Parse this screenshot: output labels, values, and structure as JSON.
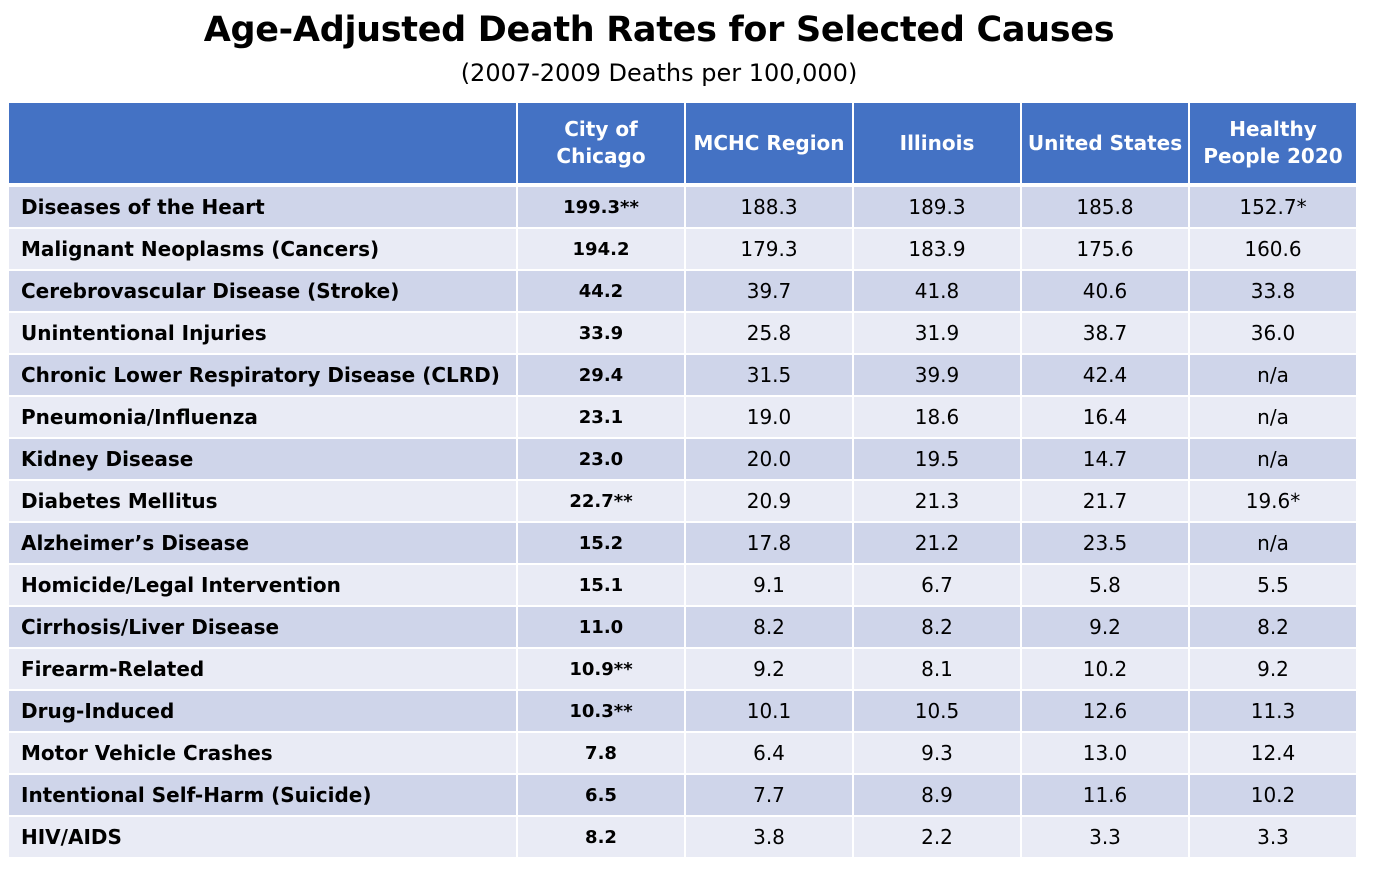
{
  "title": "Age-Adjusted Death Rates for Selected Causes",
  "subtitle": "(2007-2009 Deaths per 100,000)",
  "table": {
    "headers": [
      "",
      "City of Chicago",
      "MCHC Region",
      "Illinois",
      "United States",
      "Healthy People 2020"
    ],
    "rows": [
      {
        "cause": "Diseases of the Heart",
        "values": [
          "199.3**",
          "188.3",
          "189.3",
          "185.8",
          "152.7*"
        ]
      },
      {
        "cause": "Malignant Neoplasms (Cancers)",
        "values": [
          "194.2",
          "179.3",
          "183.9",
          "175.6",
          "160.6"
        ]
      },
      {
        "cause": "Cerebrovascular Disease (Stroke)",
        "values": [
          "44.2",
          "39.7",
          "41.8",
          "40.6",
          "33.8"
        ]
      },
      {
        "cause": "Unintentional Injuries",
        "values": [
          "33.9",
          "25.8",
          "31.9",
          "38.7",
          "36.0"
        ]
      },
      {
        "cause": "Chronic Lower Respiratory Disease (CLRD)",
        "values": [
          "29.4",
          "31.5",
          "39.9",
          "42.4",
          "n/a"
        ]
      },
      {
        "cause": "Pneumonia/Influenza",
        "values": [
          "23.1",
          "19.0",
          "18.6",
          "16.4",
          "n/a"
        ]
      },
      {
        "cause": "Kidney Disease",
        "values": [
          "23.0",
          "20.0",
          "19.5",
          "14.7",
          "n/a"
        ]
      },
      {
        "cause": "Diabetes Mellitus",
        "values": [
          "22.7**",
          "20.9",
          "21.3",
          "21.7",
          "19.6*"
        ]
      },
      {
        "cause": "Alzheimer’s Disease",
        "values": [
          "15.2",
          "17.8",
          "21.2",
          "23.5",
          "n/a"
        ]
      },
      {
        "cause": "Homicide/Legal Intervention",
        "values": [
          "15.1",
          "9.1",
          "6.7",
          "5.8",
          "5.5"
        ]
      },
      {
        "cause": "Cirrhosis/Liver Disease",
        "values": [
          "11.0",
          "8.2",
          "8.2",
          "9.2",
          "8.2"
        ]
      },
      {
        "cause": "Firearm-Related",
        "values": [
          "10.9**",
          "9.2",
          "8.1",
          "10.2",
          "9.2"
        ]
      },
      {
        "cause": "Drug-Induced",
        "values": [
          "10.3**",
          "10.1",
          "10.5",
          "12.6",
          "11.3"
        ]
      },
      {
        "cause": "Motor Vehicle Crashes",
        "values": [
          "7.8",
          "6.4",
          "9.3",
          "13.0",
          "12.4"
        ]
      },
      {
        "cause": "Intentional Self-Harm (Suicide)",
        "values": [
          "6.5",
          "7.7",
          "8.9",
          "11.6",
          "10.2"
        ]
      },
      {
        "cause": "HIV/AIDS",
        "values": [
          "8.2",
          "3.8",
          "2.2",
          "3.3",
          "3.3"
        ]
      }
    ]
  },
  "colors": {
    "header_bg": "#4472c4",
    "row_odd": "#cfd5ea",
    "row_even": "#e9ebf5"
  }
}
